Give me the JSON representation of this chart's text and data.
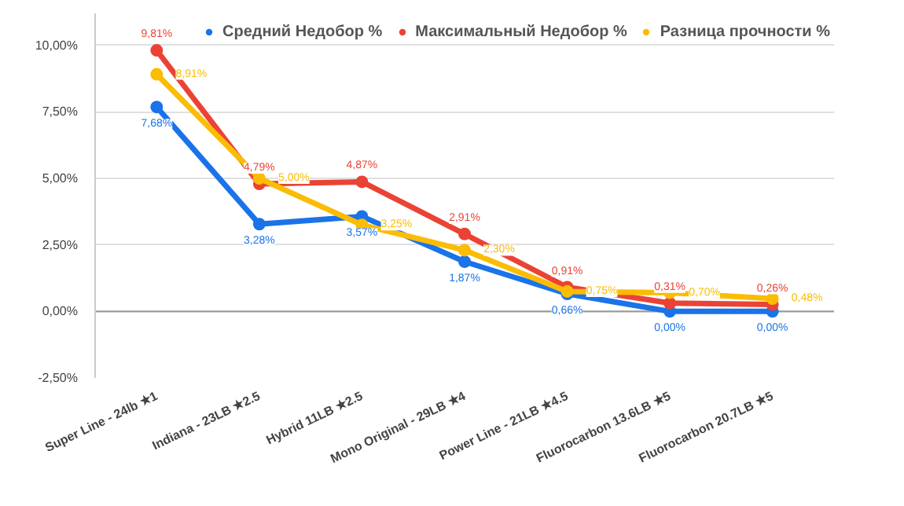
{
  "chart_data": {
    "type": "line",
    "categories": [
      "Super Line - 24lb ★1",
      "Indiana - 23LB ★2.5",
      "Hybrid 11LB ★2.5",
      "Mono Original - 29LB ★4",
      "Power Line - 21LB ★4.5",
      "Fluorocarbon 13.6LB ★5",
      "Fluorocarbon 20.7LB ★5"
    ],
    "series": [
      {
        "name": "Средний Недобор %",
        "color": "#1a73e8",
        "values": [
          7.68,
          3.28,
          3.57,
          1.87,
          0.66,
          0.0,
          0.0
        ],
        "value_labels": [
          "7,68%",
          "3,28%",
          "3,57%",
          "1,87%",
          "0,66%",
          "0,00%",
          "0,00%"
        ]
      },
      {
        "name": "Максимальный Недобор %",
        "color": "#ea4335",
        "values": [
          9.81,
          4.79,
          4.87,
          2.91,
          0.91,
          0.31,
          0.26
        ],
        "value_labels": [
          "9,81%",
          "4,79%",
          "4,87%",
          "2,91%",
          "0,91%",
          "0,31%",
          "0,26%"
        ]
      },
      {
        "name": "Разница прочности %",
        "color": "#fbbc04",
        "values": [
          8.91,
          5.0,
          3.25,
          2.3,
          0.75,
          0.7,
          0.48
        ],
        "value_labels": [
          "8,91%",
          "5,00%",
          "3,25%",
          "2,30%",
          "0,75%",
          "0,70%",
          "0,48%"
        ]
      }
    ],
    "ylim": [
      -2.5,
      11.2
    ],
    "yticks": [
      {
        "value": -2.5,
        "label": "-2,50%"
      },
      {
        "value": 0,
        "label": "0,00%"
      },
      {
        "value": 2.5,
        "label": "2,50%"
      },
      {
        "value": 5,
        "label": "5,00%"
      },
      {
        "value": 7.5,
        "label": "7,50%"
      },
      {
        "value": 10,
        "label": "10,00%"
      }
    ],
    "grid": "y",
    "legend": "top",
    "marker": "circle",
    "line_style": "solid"
  }
}
